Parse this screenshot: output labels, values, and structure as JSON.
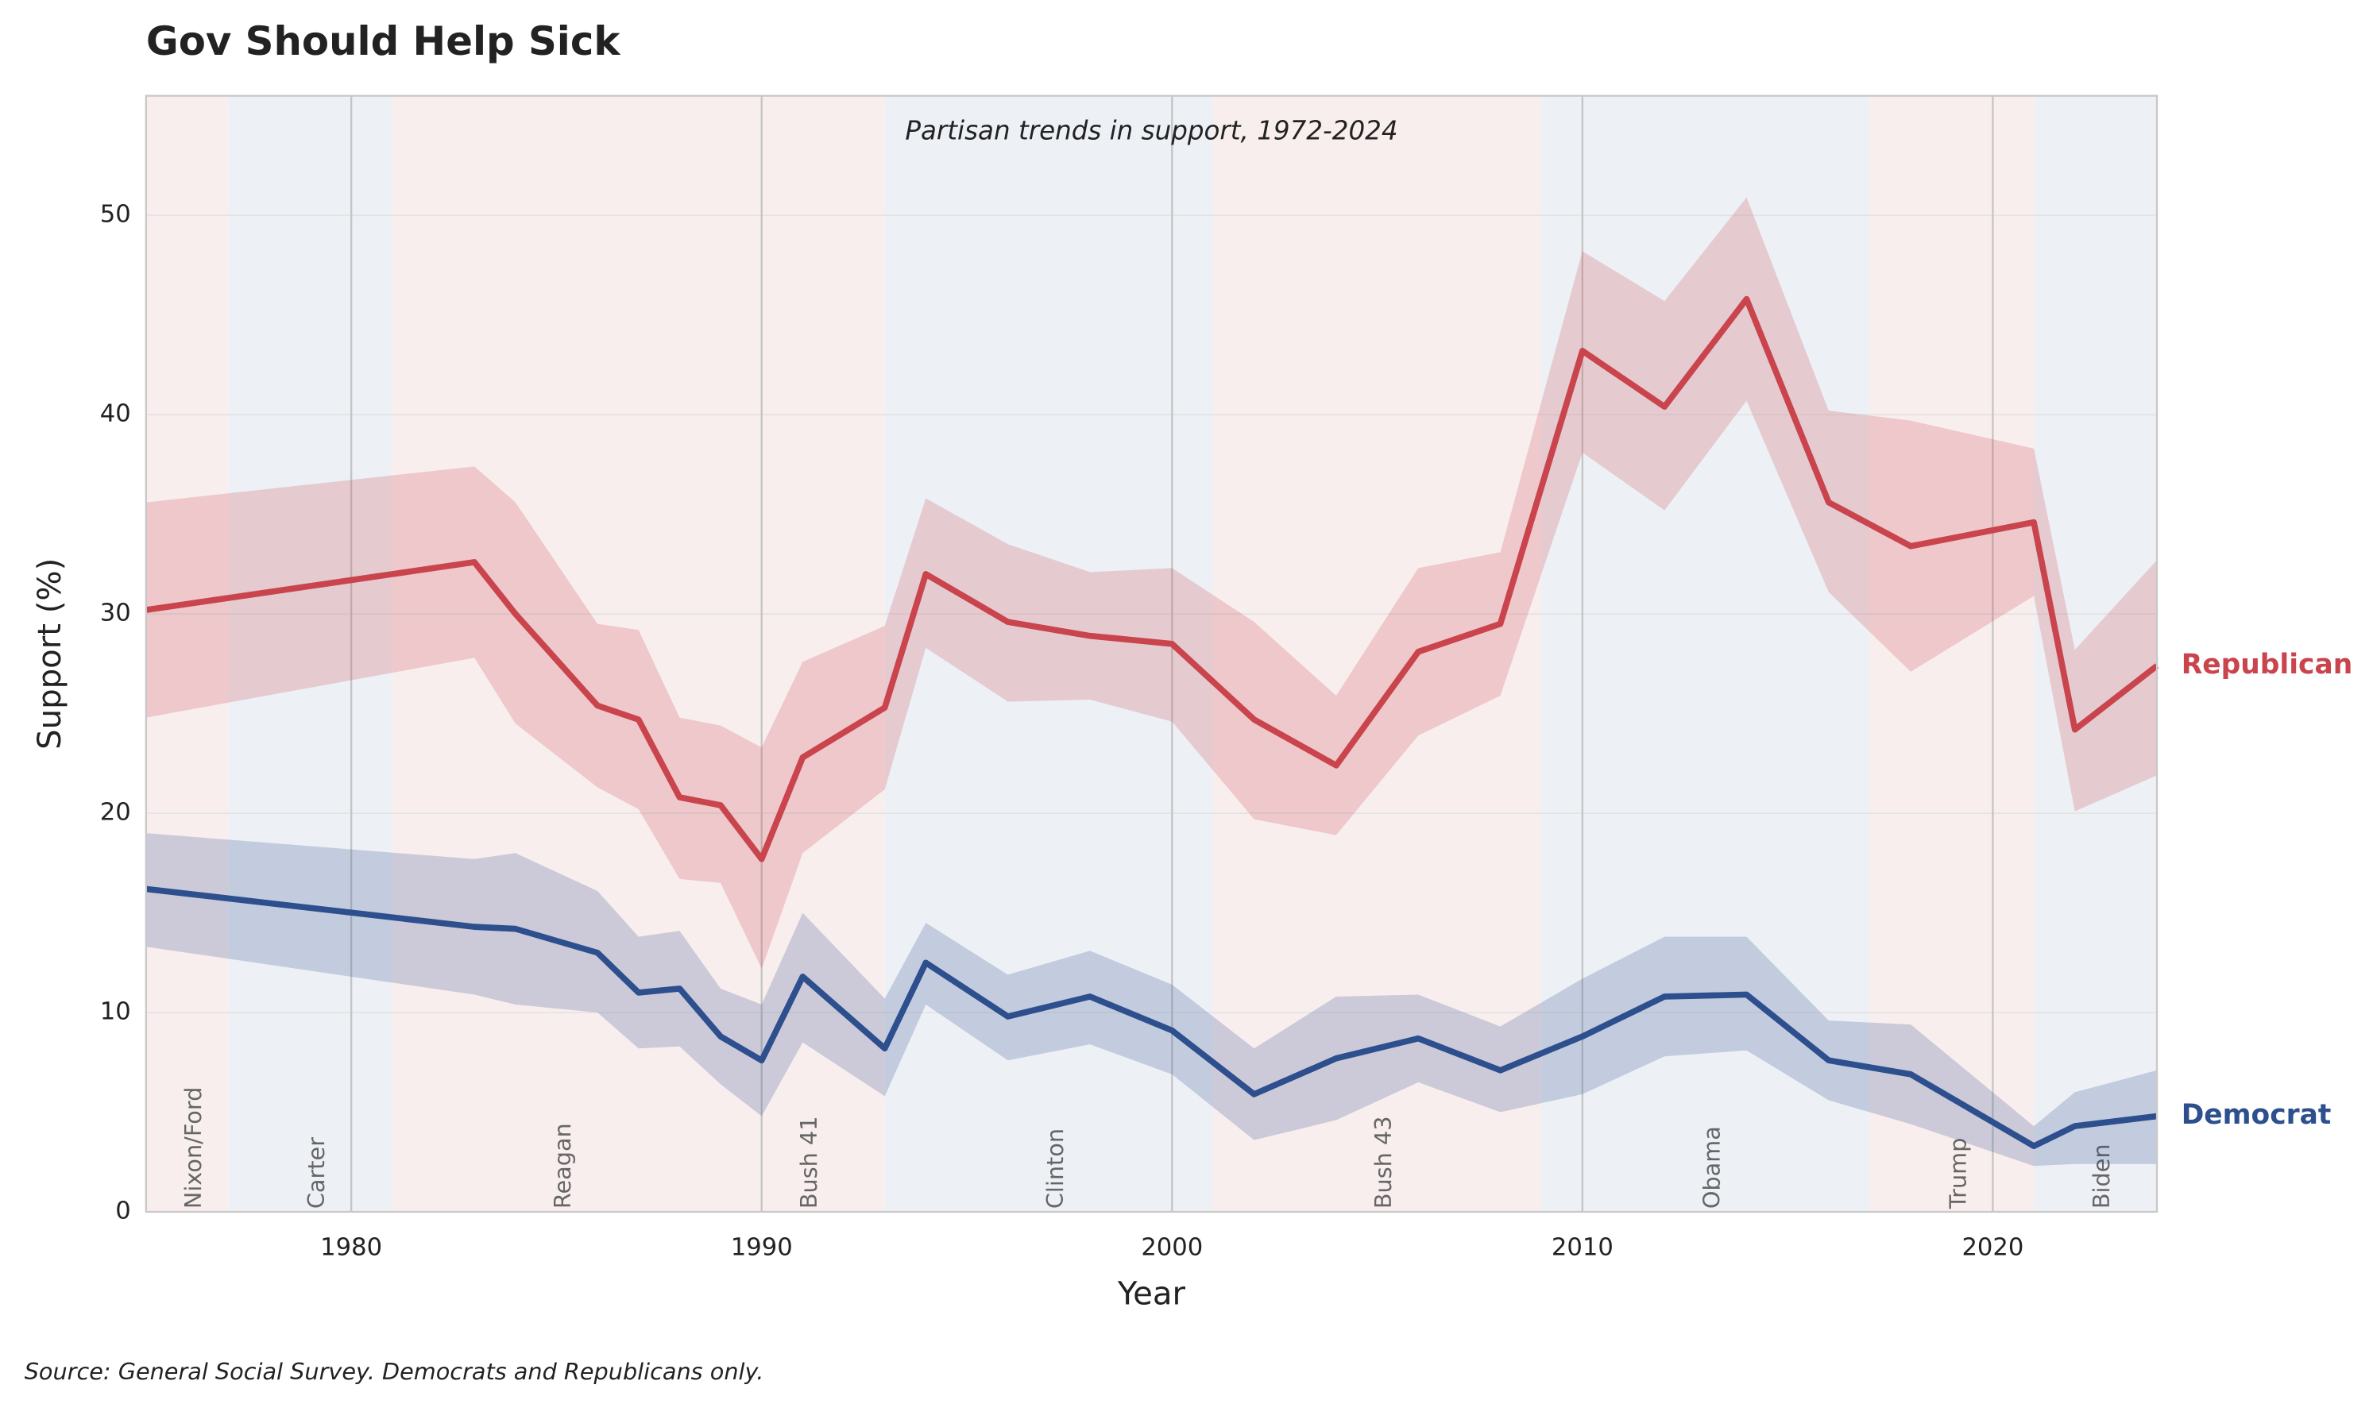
{
  "chart_data": {
    "type": "line",
    "title": "Gov Should Help Sick",
    "subtitle": "Partisan trends in support, 1972-2024",
    "xlabel": "Year",
    "ylabel": "Support (%)",
    "source": "Source: General Social Survey. Democrats and Republicans only.",
    "x": [
      1975,
      1983,
      1984,
      1986,
      1987,
      1988,
      1989,
      1990,
      1991,
      1993,
      1994,
      1996,
      1998,
      2000,
      2002,
      2004,
      2006,
      2008,
      2010,
      2012,
      2014,
      2016,
      2018,
      2021,
      2022,
      2024
    ],
    "series": [
      {
        "name": "Republican",
        "color": "#c9444c",
        "values": [
          30.2,
          32.6,
          30.0,
          25.4,
          24.7,
          20.8,
          20.4,
          17.7,
          22.8,
          25.3,
          32.0,
          29.6,
          28.9,
          28.5,
          24.7,
          22.4,
          28.1,
          29.5,
          43.2,
          40.4,
          45.8,
          35.6,
          33.4,
          34.6,
          24.2,
          27.4
        ],
        "lower": [
          24.8,
          27.8,
          24.5,
          21.3,
          20.2,
          16.7,
          16.5,
          12.2,
          18.0,
          21.2,
          28.3,
          25.6,
          25.7,
          24.6,
          19.7,
          18.9,
          23.9,
          25.9,
          38.1,
          35.2,
          40.7,
          31.1,
          27.1,
          30.9,
          20.1,
          21.9
        ],
        "upper": [
          35.6,
          37.4,
          35.6,
          29.5,
          29.2,
          24.8,
          24.4,
          23.3,
          27.6,
          29.4,
          35.8,
          33.5,
          32.1,
          32.3,
          29.6,
          25.9,
          32.3,
          33.1,
          48.2,
          45.7,
          50.9,
          40.2,
          39.7,
          38.3,
          28.2,
          32.7
        ]
      },
      {
        "name": "Democrat",
        "color": "#2d4f8e",
        "values": [
          16.2,
          14.3,
          14.2,
          13.0,
          11.0,
          11.2,
          8.8,
          7.6,
          11.8,
          8.2,
          12.5,
          9.8,
          10.8,
          9.1,
          5.9,
          7.7,
          8.7,
          7.1,
          8.8,
          10.8,
          10.9,
          7.6,
          6.9,
          3.3,
          4.3,
          4.8
        ],
        "lower": [
          13.3,
          10.9,
          10.4,
          10.0,
          8.2,
          8.3,
          6.4,
          4.8,
          8.5,
          5.8,
          10.4,
          7.6,
          8.4,
          6.9,
          3.6,
          4.6,
          6.5,
          5.0,
          5.9,
          7.8,
          8.1,
          5.6,
          4.4,
          2.3,
          2.4,
          2.4
        ],
        "upper": [
          19.0,
          17.7,
          18.0,
          16.1,
          13.8,
          14.1,
          11.2,
          10.4,
          15.0,
          10.7,
          14.5,
          11.9,
          13.1,
          11.4,
          8.2,
          10.8,
          10.9,
          9.3,
          11.7,
          13.8,
          13.8,
          9.6,
          9.4,
          4.3,
          6.0,
          7.1
        ]
      }
    ],
    "presidencies": [
      {
        "name": "Nixon/Ford",
        "start": 1975,
        "end": 1977,
        "color": "#f9eeee"
      },
      {
        "name": "Carter",
        "start": 1977,
        "end": 1981,
        "color": "#edf0f5"
      },
      {
        "name": "Reagan",
        "start": 1981,
        "end": 1989,
        "color": "#f9eeee"
      },
      {
        "name": "Bush 41",
        "start": 1989,
        "end": 1993,
        "color": "#f9eeee"
      },
      {
        "name": "Clinton",
        "start": 1993,
        "end": 2001,
        "color": "#edf0f5"
      },
      {
        "name": "Bush 43",
        "start": 2001,
        "end": 2009,
        "color": "#f9eeee"
      },
      {
        "name": "Obama",
        "start": 2009,
        "end": 2017,
        "color": "#edf0f5"
      },
      {
        "name": "Trump",
        "start": 2017,
        "end": 2021,
        "color": "#f9eeee"
      },
      {
        "name": "Biden",
        "start": 2021,
        "end": 2024,
        "color": "#edf0f5"
      }
    ],
    "xlim": [
      1975,
      2024
    ],
    "xticks": [
      1980,
      1990,
      2000,
      2010,
      2020
    ],
    "ylim": [
      0,
      56
    ],
    "yticks": [
      0,
      10,
      20,
      30,
      40,
      50
    ],
    "grid": true
  }
}
